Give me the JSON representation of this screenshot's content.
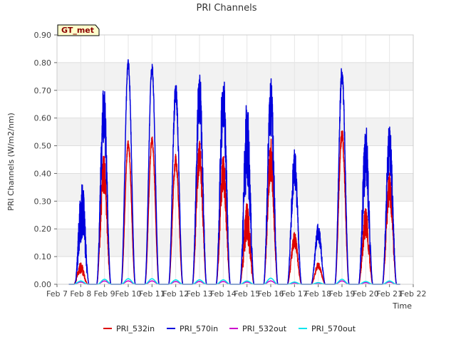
{
  "chart_data": {
    "type": "line",
    "title": "PRI Channels",
    "xlabel": "Time",
    "ylabel": "PRI Channels (W/m2/nm)",
    "badge": "GT_met",
    "ylim": [
      0,
      0.9
    ],
    "xlim": [
      7,
      22
    ],
    "y_ticks": [
      0.0,
      0.1,
      0.2,
      0.3,
      0.4,
      0.5,
      0.6,
      0.7,
      0.8,
      0.9
    ],
    "y_tick_labels": [
      "0.00",
      "0.10",
      "0.20",
      "0.30",
      "0.40",
      "0.50",
      "0.60",
      "0.70",
      "0.80",
      "0.90"
    ],
    "x_ticks": [
      7,
      8,
      9,
      10,
      11,
      12,
      13,
      14,
      15,
      16,
      17,
      18,
      19,
      20,
      21,
      22
    ],
    "x_tick_labels": [
      "Feb 7",
      "Feb 8",
      "Feb 9",
      "Feb 10",
      "Feb 11",
      "Feb 12",
      "Feb 13",
      "Feb 14",
      "Feb 15",
      "Feb 16",
      "Feb 17",
      "Feb 18",
      "Feb 19",
      "Feb 20",
      "Feb 21",
      "Feb 22"
    ],
    "grid": true,
    "legend_position": "bottom",
    "data_start": 7.5,
    "data_end": 21.45,
    "series": [
      {
        "name": "PRI_532in",
        "color": "#dd0000",
        "days": [
          {
            "day": 8,
            "peak": 0.08,
            "offset": 0.0,
            "noise": 0.5
          },
          {
            "day": 9,
            "peak": 0.47,
            "offset": -0.03,
            "noise": 0.3
          },
          {
            "day": 10,
            "peak": 0.52,
            "offset": 0.0,
            "noise": 0.05
          },
          {
            "day": 11,
            "peak": 0.535,
            "offset": 0.0,
            "noise": 0.05
          },
          {
            "day": 12,
            "peak": 0.47,
            "offset": 0.0,
            "noise": 0.1
          },
          {
            "day": 13,
            "peak": 0.52,
            "offset": 0.0,
            "noise": 0.25
          },
          {
            "day": 14,
            "peak": 0.47,
            "offset": 0.0,
            "noise": 0.3
          },
          {
            "day": 15,
            "peak": 0.3,
            "offset": 0.0,
            "noise": 0.5
          },
          {
            "day": 16,
            "peak": 0.53,
            "offset": 0.0,
            "noise": 0.3
          },
          {
            "day": 17,
            "peak": 0.19,
            "offset": 0.0,
            "noise": 0.3
          },
          {
            "day": 18,
            "peak": 0.08,
            "offset": 0.0,
            "noise": 0.3
          },
          {
            "day": 19,
            "peak": 0.57,
            "offset": 0.0,
            "noise": 0.1
          },
          {
            "day": 20,
            "peak": 0.28,
            "offset": 0.0,
            "noise": 0.4
          },
          {
            "day": 21,
            "peak": 0.41,
            "offset": 0.0,
            "noise": 0.3
          }
        ]
      },
      {
        "name": "PRI_570in",
        "color": "#0000dd",
        "days": [
          {
            "day": 8,
            "peak": 0.39,
            "offset": 0.05,
            "noise": 0.6
          },
          {
            "day": 9,
            "peak": 0.73,
            "offset": -0.03,
            "noise": 0.3
          },
          {
            "day": 10,
            "peak": 0.82,
            "offset": 0.0,
            "noise": 0.05
          },
          {
            "day": 11,
            "peak": 0.8,
            "offset": 0.0,
            "noise": 0.05
          },
          {
            "day": 12,
            "peak": 0.73,
            "offset": 0.0,
            "noise": 0.1
          },
          {
            "day": 13,
            "peak": 0.785,
            "offset": 0.0,
            "noise": 0.25
          },
          {
            "day": 14,
            "peak": 0.78,
            "offset": 0.0,
            "noise": 0.3
          },
          {
            "day": 15,
            "peak": 0.675,
            "offset": 0.0,
            "noise": 0.5
          },
          {
            "day": 16,
            "peak": 0.765,
            "offset": 0.0,
            "noise": 0.3
          },
          {
            "day": 17,
            "peak": 0.5,
            "offset": 0.0,
            "noise": 0.3
          },
          {
            "day": 18,
            "peak": 0.22,
            "offset": 0.0,
            "noise": 0.3
          },
          {
            "day": 19,
            "peak": 0.795,
            "offset": 0.0,
            "noise": 0.1
          },
          {
            "day": 20,
            "peak": 0.58,
            "offset": 0.0,
            "noise": 0.4
          },
          {
            "day": 21,
            "peak": 0.58,
            "offset": 0.0,
            "noise": 0.3
          }
        ]
      },
      {
        "name": "PRI_532out",
        "color": "#cc00cc",
        "days": [
          {
            "day": 8,
            "peak": 0.008
          },
          {
            "day": 9,
            "peak": 0.012
          },
          {
            "day": 10,
            "peak": 0.012
          },
          {
            "day": 11,
            "peak": 0.012
          },
          {
            "day": 12,
            "peak": 0.01
          },
          {
            "day": 13,
            "peak": 0.01
          },
          {
            "day": 14,
            "peak": 0.01
          },
          {
            "day": 15,
            "peak": 0.008
          },
          {
            "day": 16,
            "peak": 0.012
          },
          {
            "day": 17,
            "peak": 0.005
          },
          {
            "day": 18,
            "peak": 0.004
          },
          {
            "day": 19,
            "peak": 0.012
          },
          {
            "day": 20,
            "peak": 0.006
          },
          {
            "day": 21,
            "peak": 0.008
          }
        ]
      },
      {
        "name": "PRI_570out",
        "color": "#00e5ee",
        "days": [
          {
            "day": 8,
            "peak": 0.012
          },
          {
            "day": 9,
            "peak": 0.018
          },
          {
            "day": 10,
            "peak": 0.02
          },
          {
            "day": 11,
            "peak": 0.02
          },
          {
            "day": 12,
            "peak": 0.016
          },
          {
            "day": 13,
            "peak": 0.016
          },
          {
            "day": 14,
            "peak": 0.016
          },
          {
            "day": 15,
            "peak": 0.012
          },
          {
            "day": 16,
            "peak": 0.022
          },
          {
            "day": 17,
            "peak": 0.008
          },
          {
            "day": 18,
            "peak": 0.006
          },
          {
            "day": 19,
            "peak": 0.018
          },
          {
            "day": 20,
            "peak": 0.01
          },
          {
            "day": 21,
            "peak": 0.012
          }
        ]
      }
    ]
  }
}
